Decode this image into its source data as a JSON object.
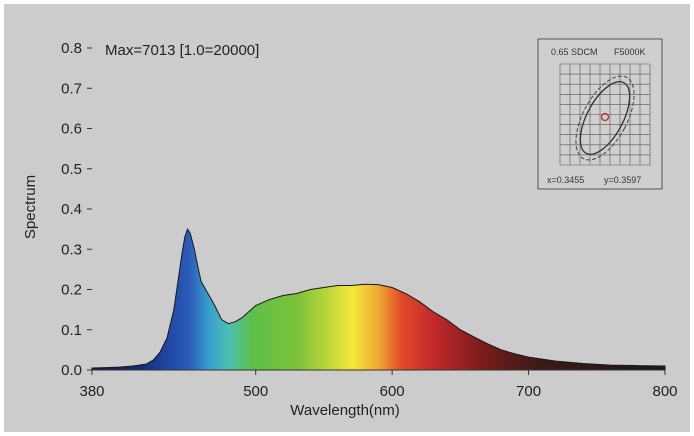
{
  "chart_data": {
    "type": "area",
    "header_text": "Max=7013  [1.0=20000]",
    "xlabel": "Wavelength(nm)",
    "ylabel": "Spectrum",
    "xlim": [
      380,
      800
    ],
    "ylim": [
      0,
      0.8
    ],
    "x_ticks": [
      "380",
      "500",
      "600",
      "700",
      "800"
    ],
    "x_tick_values": [
      380,
      500,
      600,
      700,
      800
    ],
    "y_ticks": [
      "0.0",
      "0.1",
      "0.2",
      "0.3",
      "0.4",
      "0.5",
      "0.6",
      "0.7",
      "0.8"
    ],
    "y_tick_values": [
      0,
      0.1,
      0.2,
      0.3,
      0.4,
      0.5,
      0.6,
      0.7,
      0.8
    ],
    "x": [
      380,
      390,
      400,
      410,
      420,
      425,
      430,
      435,
      440,
      443,
      446,
      448,
      450,
      452,
      455,
      458,
      460,
      465,
      470,
      475,
      480,
      485,
      490,
      495,
      500,
      510,
      520,
      530,
      540,
      550,
      560,
      570,
      580,
      590,
      600,
      610,
      620,
      630,
      640,
      650,
      660,
      670,
      680,
      690,
      700,
      720,
      740,
      760,
      780,
      800
    ],
    "values": [
      0.005,
      0.006,
      0.007,
      0.01,
      0.015,
      0.025,
      0.045,
      0.08,
      0.15,
      0.22,
      0.29,
      0.33,
      0.35,
      0.34,
      0.3,
      0.25,
      0.22,
      0.19,
      0.16,
      0.125,
      0.115,
      0.12,
      0.13,
      0.145,
      0.16,
      0.175,
      0.185,
      0.19,
      0.2,
      0.205,
      0.21,
      0.21,
      0.213,
      0.212,
      0.205,
      0.19,
      0.17,
      0.145,
      0.125,
      0.1,
      0.082,
      0.065,
      0.05,
      0.04,
      0.032,
      0.022,
      0.016,
      0.012,
      0.011,
      0.01
    ],
    "grid": false,
    "legend": "none",
    "inset": {
      "title_left": "0.65 SDCM",
      "title_right": "F5000K",
      "x_text": "x=0.3455",
      "y_text": "y=0.3597"
    },
    "colors": {
      "panel_background": "#cccccc",
      "curve_edge": "#1a1a1a",
      "inset_background": "#cfcfcf",
      "inset_marker": "#b03030"
    }
  }
}
